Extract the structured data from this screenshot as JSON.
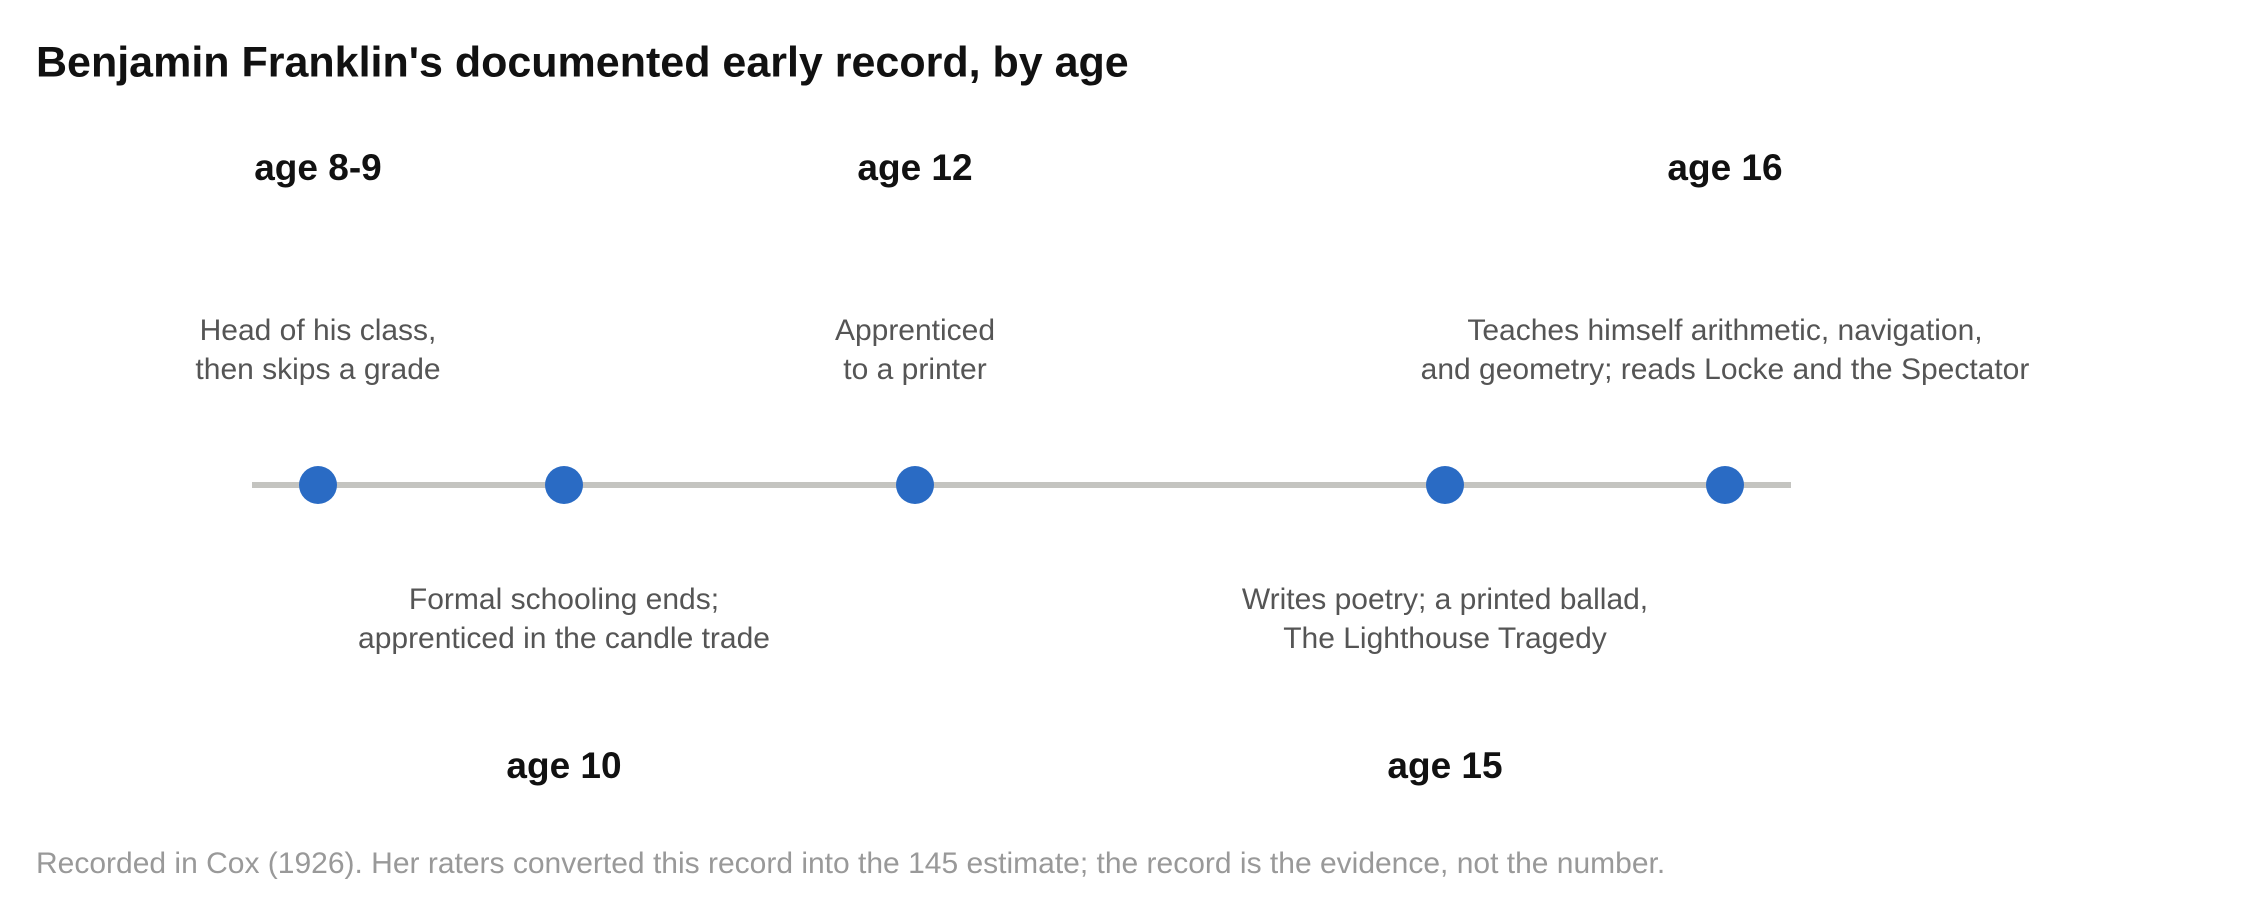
{
  "title": "Benjamin Franklin's documented early record, by age",
  "events": [
    {
      "age": "age 8-9",
      "lines": [
        "Head of his class,",
        "then skips a grade"
      ]
    },
    {
      "age": "age 10",
      "lines": [
        "Formal schooling ends;",
        "apprenticed in the candle trade"
      ]
    },
    {
      "age": "age 12",
      "lines": [
        "Apprenticed",
        "to a printer"
      ]
    },
    {
      "age": "age 15",
      "lines": [
        "Writes poetry; a printed ballad,",
        "The Lighthouse Tragedy"
      ]
    },
    {
      "age": "age 16",
      "lines": [
        "Teaches himself arithmetic, navigation,",
        "and geometry; reads Locke and the Spectator"
      ]
    }
  ],
  "note": "Recorded in Cox (1926). Her raters converted this record into the 145 estimate; the record is the evidence, not the number."
}
